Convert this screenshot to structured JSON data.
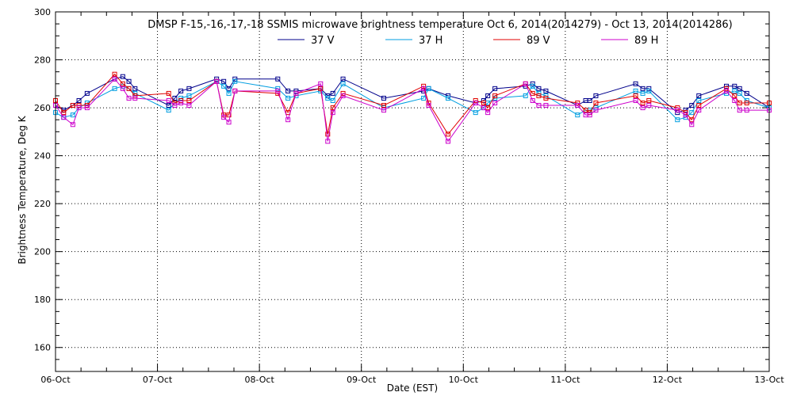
{
  "chart_data": {
    "type": "line",
    "title": "DMSP F-15,-16,-17,-18 SSMIS microwave brightness temperature Oct  6, 2014(2014279) - Oct 13, 2014(2014286)",
    "xlabel": "Date (EST)",
    "ylabel": "Brightness Temperature, Deg K",
    "xlim": [
      0,
      7
    ],
    "ylim": [
      150,
      300
    ],
    "x_ticks": [
      0,
      1,
      2,
      3,
      4,
      5,
      6,
      7
    ],
    "x_tick_labels": [
      "06-Oct",
      "07-Oct",
      "08-Oct",
      "09-Oct",
      "10-Oct",
      "11-Oct",
      "12-Oct",
      "13-Oct"
    ],
    "y_ticks": [
      160,
      180,
      200,
      220,
      240,
      260,
      280,
      300
    ],
    "y_tick_labels": [
      "160",
      "180",
      "200",
      "220",
      "240",
      "260",
      "280",
      "300"
    ],
    "grid": true,
    "legend_position": "top-center",
    "series": [
      {
        "name": "37 V",
        "color": "#00008b",
        "points": [
          [
            0.0,
            261
          ],
          [
            0.08,
            259
          ],
          [
            0.17,
            261
          ],
          [
            0.23,
            263
          ],
          [
            0.31,
            266
          ],
          [
            0.58,
            272
          ],
          [
            0.66,
            273
          ],
          [
            0.72,
            271
          ],
          [
            0.78,
            268
          ],
          [
            1.11,
            261
          ],
          [
            1.17,
            264
          ],
          [
            1.23,
            267
          ],
          [
            1.31,
            268
          ],
          [
            1.58,
            272
          ],
          [
            1.65,
            271
          ],
          [
            1.7,
            268
          ],
          [
            1.76,
            272
          ],
          [
            2.18,
            272
          ],
          [
            2.28,
            267
          ],
          [
            2.36,
            267
          ],
          [
            2.6,
            268
          ],
          [
            2.67,
            265
          ],
          [
            2.72,
            266
          ],
          [
            2.82,
            272
          ],
          [
            3.22,
            264
          ],
          [
            3.61,
            267
          ],
          [
            3.66,
            268
          ],
          [
            3.85,
            265
          ],
          [
            4.12,
            262
          ],
          [
            4.2,
            263
          ],
          [
            4.24,
            265
          ],
          [
            4.31,
            268
          ],
          [
            4.61,
            269
          ],
          [
            4.68,
            270
          ],
          [
            4.74,
            268
          ],
          [
            4.81,
            267
          ],
          [
            5.12,
            261
          ],
          [
            5.2,
            263
          ],
          [
            5.24,
            263
          ],
          [
            5.3,
            265
          ],
          [
            5.69,
            270
          ],
          [
            5.76,
            268
          ],
          [
            5.82,
            268
          ],
          [
            6.1,
            258
          ],
          [
            6.18,
            259
          ],
          [
            6.24,
            261
          ],
          [
            6.31,
            265
          ],
          [
            6.58,
            269
          ],
          [
            6.66,
            269
          ],
          [
            6.71,
            268
          ],
          [
            6.78,
            266
          ],
          [
            7.0,
            260
          ]
        ]
      },
      {
        "name": "37 H",
        "color": "#009ee0",
        "points": [
          [
            0.0,
            258
          ],
          [
            0.08,
            256
          ],
          [
            0.17,
            257
          ],
          [
            0.23,
            260
          ],
          [
            0.31,
            262
          ],
          [
            0.58,
            268
          ],
          [
            0.66,
            269
          ],
          [
            0.72,
            268
          ],
          [
            0.78,
            266
          ],
          [
            1.11,
            259
          ],
          [
            1.17,
            262
          ],
          [
            1.23,
            264
          ],
          [
            1.31,
            265
          ],
          [
            1.58,
            271
          ],
          [
            1.65,
            269
          ],
          [
            1.7,
            266
          ],
          [
            1.76,
            271
          ],
          [
            2.18,
            268
          ],
          [
            2.28,
            264
          ],
          [
            2.36,
            265
          ],
          [
            2.6,
            267
          ],
          [
            2.67,
            264
          ],
          [
            2.72,
            263
          ],
          [
            2.82,
            270
          ],
          [
            3.22,
            260
          ],
          [
            3.61,
            264
          ],
          [
            3.66,
            268
          ],
          [
            3.85,
            264
          ],
          [
            4.12,
            258
          ],
          [
            4.2,
            260
          ],
          [
            4.24,
            262
          ],
          [
            4.31,
            264
          ],
          [
            4.61,
            265
          ],
          [
            4.68,
            269
          ],
          [
            4.74,
            266
          ],
          [
            4.81,
            265
          ],
          [
            5.12,
            257
          ],
          [
            5.2,
            259
          ],
          [
            5.24,
            259
          ],
          [
            5.3,
            260
          ],
          [
            5.69,
            267
          ],
          [
            5.76,
            266
          ],
          [
            5.82,
            267
          ],
          [
            6.1,
            255
          ],
          [
            6.18,
            256
          ],
          [
            6.24,
            258
          ],
          [
            6.31,
            263
          ],
          [
            6.58,
            266
          ],
          [
            6.66,
            267
          ],
          [
            6.71,
            266
          ],
          [
            6.78,
            263
          ],
          [
            7.0,
            260
          ]
        ]
      },
      {
        "name": "89 V",
        "color": "#e00000",
        "points": [
          [
            0.0,
            263
          ],
          [
            0.08,
            258
          ],
          [
            0.17,
            261
          ],
          [
            0.23,
            261
          ],
          [
            0.31,
            261
          ],
          [
            0.58,
            274
          ],
          [
            0.66,
            270
          ],
          [
            0.72,
            268
          ],
          [
            0.78,
            265
          ],
          [
            1.11,
            266
          ],
          [
            1.17,
            262
          ],
          [
            1.23,
            263
          ],
          [
            1.31,
            263
          ],
          [
            1.58,
            271
          ],
          [
            1.65,
            257
          ],
          [
            1.7,
            257
          ],
          [
            1.76,
            267
          ],
          [
            2.18,
            266
          ],
          [
            2.28,
            258
          ],
          [
            2.36,
            266
          ],
          [
            2.6,
            268
          ],
          [
            2.67,
            249
          ],
          [
            2.72,
            260
          ],
          [
            2.82,
            266
          ],
          [
            3.22,
            261
          ],
          [
            3.61,
            269
          ],
          [
            3.66,
            262
          ],
          [
            3.85,
            249
          ],
          [
            4.12,
            263
          ],
          [
            4.2,
            262
          ],
          [
            4.24,
            260
          ],
          [
            4.31,
            265
          ],
          [
            4.61,
            270
          ],
          [
            4.68,
            266
          ],
          [
            4.74,
            265
          ],
          [
            4.81,
            264
          ],
          [
            5.12,
            262
          ],
          [
            5.2,
            259
          ],
          [
            5.24,
            258
          ],
          [
            5.3,
            262
          ],
          [
            5.69,
            265
          ],
          [
            5.76,
            262
          ],
          [
            5.82,
            263
          ],
          [
            6.1,
            260
          ],
          [
            6.18,
            258
          ],
          [
            6.24,
            255
          ],
          [
            6.31,
            261
          ],
          [
            6.58,
            268
          ],
          [
            6.66,
            265
          ],
          [
            6.71,
            262
          ],
          [
            6.78,
            262
          ],
          [
            7.0,
            262
          ]
        ]
      },
      {
        "name": "89 H",
        "color": "#cc00cc",
        "points": [
          [
            0.0,
            261
          ],
          [
            0.08,
            256
          ],
          [
            0.17,
            253
          ],
          [
            0.23,
            260
          ],
          [
            0.31,
            260
          ],
          [
            0.58,
            272
          ],
          [
            0.66,
            268
          ],
          [
            0.72,
            264
          ],
          [
            0.78,
            264
          ],
          [
            1.11,
            263
          ],
          [
            1.17,
            261
          ],
          [
            1.23,
            262
          ],
          [
            1.31,
            261
          ],
          [
            1.58,
            271
          ],
          [
            1.65,
            256
          ],
          [
            1.7,
            254
          ],
          [
            1.76,
            267
          ],
          [
            2.18,
            267
          ],
          [
            2.28,
            255
          ],
          [
            2.36,
            266
          ],
          [
            2.6,
            270
          ],
          [
            2.67,
            246
          ],
          [
            2.72,
            258
          ],
          [
            2.82,
            265
          ],
          [
            3.22,
            259
          ],
          [
            3.61,
            268
          ],
          [
            3.66,
            261
          ],
          [
            3.85,
            246
          ],
          [
            4.12,
            262
          ],
          [
            4.2,
            260
          ],
          [
            4.24,
            258
          ],
          [
            4.31,
            262
          ],
          [
            4.61,
            270
          ],
          [
            4.68,
            263
          ],
          [
            4.74,
            261
          ],
          [
            4.81,
            261
          ],
          [
            5.12,
            261
          ],
          [
            5.2,
            257
          ],
          [
            5.24,
            257
          ],
          [
            5.3,
            259
          ],
          [
            5.69,
            263
          ],
          [
            5.76,
            260
          ],
          [
            5.82,
            261
          ],
          [
            6.1,
            259
          ],
          [
            6.18,
            257
          ],
          [
            6.24,
            253
          ],
          [
            6.31,
            259
          ],
          [
            6.58,
            267
          ],
          [
            6.66,
            263
          ],
          [
            6.71,
            259
          ],
          [
            6.78,
            259
          ],
          [
            7.0,
            259
          ]
        ]
      }
    ]
  }
}
